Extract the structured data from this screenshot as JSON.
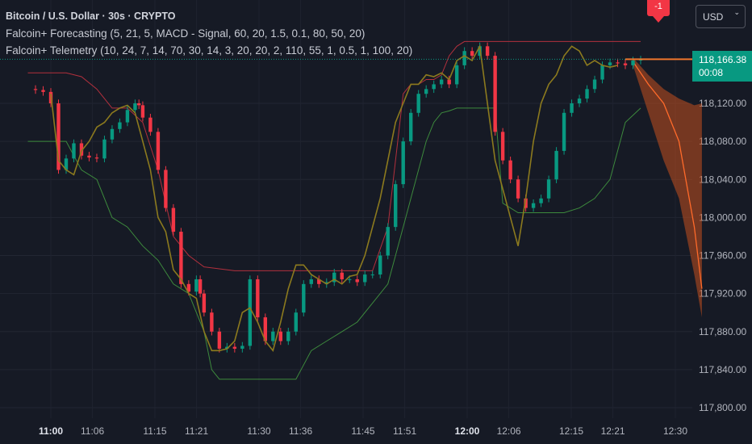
{
  "header": {
    "symbol_line": "Bitcoin / U.S. Dollar · 30s · CRYPTO",
    "indicator1": "Falcoin+ Forecasting (5, 21, 5, MACD - Signal, 60, 20, 1.5, 0.1, 80, 50, 20)",
    "indicator2": "Falcoin+ Telemetry (10, 24, 7, 14, 70, 30, 14, 3, 20, 20, 2, 110, 55, 1, 0.5, 1, 100, 20)"
  },
  "currency_button": {
    "label": "USD"
  },
  "alert_badge": {
    "label": "-1"
  },
  "last_price": {
    "value": "118,166.38",
    "countdown": "00:08"
  },
  "colors": {
    "background": "#161a25",
    "up_candle": "#089981",
    "down_candle": "#f23645",
    "ma_line": "#8c7a1e",
    "upper_band": "#b2303d",
    "lower_band": "#3d8a3d",
    "forecast": "#c4501f"
  },
  "chart_data": {
    "type": "line",
    "title": "Bitcoin / U.S. Dollar · 30s · CRYPTO",
    "x_ticks": [
      "11:00",
      "11:06",
      "11:15",
      "11:21",
      "11:30",
      "11:36",
      "11:45",
      "11:51",
      "12:00",
      "12:06",
      "12:15",
      "12:21",
      "12:30"
    ],
    "x_ticks_bold": [
      "11:00",
      "12:00"
    ],
    "y_ticks": [
      "118,120.00",
      "118,080.00",
      "118,040.00",
      "118,000.00",
      "117,960.00",
      "117,920.00",
      "117,880.00",
      "117,840.00",
      "117,800.00"
    ],
    "ylim": [
      117790,
      118190
    ],
    "x_range_minutes": [
      0,
      100
    ],
    "series": [
      {
        "kind": "close_price",
        "points": [
          [
            -6,
            118135
          ],
          [
            -4,
            118134
          ],
          [
            -2,
            118132
          ],
          [
            0,
            118120
          ],
          [
            2,
            118050
          ],
          [
            4,
            118062
          ],
          [
            6,
            118078
          ],
          [
            8,
            118065
          ],
          [
            10,
            118063
          ],
          [
            12,
            118062
          ],
          [
            14,
            118082
          ],
          [
            16,
            118093
          ],
          [
            18,
            118100
          ],
          [
            20,
            118113
          ],
          [
            22,
            118120
          ],
          [
            23,
            118118
          ],
          [
            24,
            118105
          ],
          [
            26,
            118090
          ],
          [
            28,
            118050
          ],
          [
            30,
            118010
          ],
          [
            32,
            117985
          ],
          [
            34,
            117930
          ],
          [
            36,
            117922
          ],
          [
            38,
            117935
          ],
          [
            39,
            117920
          ],
          [
            40,
            117900
          ],
          [
            42,
            117880
          ],
          [
            44,
            117862
          ],
          [
            46,
            117864
          ],
          [
            48,
            117862
          ],
          [
            50,
            117865
          ],
          [
            52,
            117935
          ],
          [
            54,
            117895
          ],
          [
            56,
            117870
          ],
          [
            58,
            117880
          ],
          [
            60,
            117870
          ],
          [
            62,
            117880
          ],
          [
            64,
            117900
          ],
          [
            66,
            117930
          ],
          [
            68,
            117935
          ],
          [
            70,
            117930
          ],
          [
            72,
            117932
          ],
          [
            74,
            117942
          ],
          [
            76,
            117935
          ],
          [
            78,
            117935
          ],
          [
            80,
            117932
          ],
          [
            82,
            117940
          ],
          [
            84,
            117940
          ],
          [
            86,
            117960
          ],
          [
            88,
            117990
          ],
          [
            90,
            118035
          ],
          [
            92,
            118080
          ],
          [
            94,
            118110
          ],
          [
            96,
            118130
          ],
          [
            98,
            118135
          ],
          [
            100,
            118140
          ],
          [
            102,
            118145
          ],
          [
            104,
            118140
          ],
          [
            106,
            118160
          ],
          [
            108,
            118175
          ],
          [
            110,
            118170
          ],
          [
            112,
            118180
          ],
          [
            114,
            118170
          ],
          [
            116,
            118090
          ],
          [
            118,
            118060
          ],
          [
            120,
            118040
          ],
          [
            122,
            118020
          ],
          [
            124,
            118010
          ],
          [
            126,
            118015
          ],
          [
            128,
            118020
          ],
          [
            130,
            118040
          ],
          [
            132,
            118070
          ],
          [
            134,
            118110
          ],
          [
            136,
            118120
          ],
          [
            138,
            118125
          ],
          [
            140,
            118135
          ],
          [
            142,
            118145
          ],
          [
            144,
            118160
          ],
          [
            146,
            118163
          ],
          [
            148,
            118162
          ],
          [
            150,
            118160
          ],
          [
            152,
            118165
          ],
          [
            154,
            118166
          ]
        ]
      },
      {
        "kind": "moving_average",
        "points": [
          [
            0,
            118130
          ],
          [
            2,
            118060
          ],
          [
            4,
            118050
          ],
          [
            6,
            118045
          ],
          [
            8,
            118070
          ],
          [
            10,
            118080
          ],
          [
            12,
            118095
          ],
          [
            14,
            118100
          ],
          [
            16,
            118110
          ],
          [
            18,
            118115
          ],
          [
            20,
            118118
          ],
          [
            22,
            118110
          ],
          [
            24,
            118080
          ],
          [
            26,
            118050
          ],
          [
            28,
            118000
          ],
          [
            30,
            117985
          ],
          [
            32,
            117945
          ],
          [
            34,
            117935
          ],
          [
            36,
            117920
          ],
          [
            38,
            117915
          ],
          [
            40,
            117880
          ],
          [
            42,
            117860
          ],
          [
            44,
            117860
          ],
          [
            46,
            117862
          ],
          [
            48,
            117870
          ],
          [
            50,
            117900
          ],
          [
            52,
            117905
          ],
          [
            54,
            117890
          ],
          [
            56,
            117870
          ],
          [
            58,
            117860
          ],
          [
            60,
            117890
          ],
          [
            62,
            117925
          ],
          [
            64,
            117950
          ],
          [
            66,
            117950
          ],
          [
            68,
            117940
          ],
          [
            70,
            117935
          ],
          [
            72,
            117930
          ],
          [
            74,
            117935
          ],
          [
            76,
            117930
          ],
          [
            78,
            117938
          ],
          [
            80,
            117940
          ],
          [
            82,
            117960
          ],
          [
            84,
            117990
          ],
          [
            86,
            118020
          ],
          [
            88,
            118060
          ],
          [
            90,
            118100
          ],
          [
            92,
            118120
          ],
          [
            94,
            118140
          ],
          [
            96,
            118140
          ],
          [
            98,
            118150
          ],
          [
            100,
            118148
          ],
          [
            102,
            118152
          ],
          [
            104,
            118145
          ],
          [
            106,
            118165
          ],
          [
            108,
            118170
          ],
          [
            110,
            118165
          ],
          [
            112,
            118180
          ],
          [
            114,
            118120
          ],
          [
            116,
            118060
          ],
          [
            118,
            118030
          ],
          [
            120,
            118000
          ],
          [
            122,
            117970
          ],
          [
            124,
            118020
          ],
          [
            126,
            118080
          ],
          [
            128,
            118120
          ],
          [
            130,
            118140
          ],
          [
            132,
            118150
          ],
          [
            134,
            118170
          ],
          [
            136,
            118180
          ],
          [
            138,
            118175
          ],
          [
            140,
            118160
          ],
          [
            142,
            118165
          ],
          [
            144,
            118160
          ],
          [
            146,
            118158
          ],
          [
            148,
            118160
          ]
        ]
      },
      {
        "kind": "upper_band",
        "points": [
          [
            -6,
            118152
          ],
          [
            4,
            118152
          ],
          [
            8,
            118148
          ],
          [
            12,
            118135
          ],
          [
            16,
            118115
          ],
          [
            20,
            118115
          ],
          [
            24,
            118100
          ],
          [
            28,
            118050
          ],
          [
            32,
            117980
          ],
          [
            36,
            117960
          ],
          [
            40,
            117948
          ],
          [
            44,
            117946
          ],
          [
            48,
            117944
          ],
          [
            52,
            117944
          ],
          [
            56,
            117944
          ],
          [
            60,
            117944
          ],
          [
            64,
            117944
          ],
          [
            68,
            117944
          ],
          [
            72,
            117944
          ],
          [
            76,
            117944
          ],
          [
            80,
            117944
          ],
          [
            84,
            117944
          ],
          [
            88,
            117990
          ],
          [
            90,
            118060
          ],
          [
            92,
            118130
          ],
          [
            94,
            118140
          ],
          [
            96,
            118140
          ],
          [
            98,
            118145
          ],
          [
            100,
            118145
          ],
          [
            102,
            118150
          ],
          [
            104,
            118170
          ],
          [
            106,
            118180
          ],
          [
            108,
            118185
          ],
          [
            110,
            118185
          ],
          [
            112,
            118185
          ],
          [
            114,
            118185
          ],
          [
            116,
            118185
          ],
          [
            118,
            118185
          ],
          [
            122,
            118185
          ],
          [
            126,
            118185
          ],
          [
            130,
            118185
          ],
          [
            134,
            118185
          ],
          [
            138,
            118185
          ],
          [
            142,
            118185
          ],
          [
            146,
            118185
          ],
          [
            150,
            118185
          ],
          [
            154,
            118185
          ]
        ]
      },
      {
        "kind": "lower_band",
        "points": [
          [
            -6,
            118080
          ],
          [
            4,
            118080
          ],
          [
            8,
            118050
          ],
          [
            12,
            118040
          ],
          [
            16,
            118000
          ],
          [
            20,
            117990
          ],
          [
            24,
            117970
          ],
          [
            28,
            117955
          ],
          [
            32,
            117930
          ],
          [
            36,
            117920
          ],
          [
            38,
            117900
          ],
          [
            40,
            117880
          ],
          [
            42,
            117840
          ],
          [
            44,
            117830
          ],
          [
            48,
            117830
          ],
          [
            52,
            117830
          ],
          [
            56,
            117830
          ],
          [
            60,
            117830
          ],
          [
            64,
            117830
          ],
          [
            68,
            117860
          ],
          [
            72,
            117870
          ],
          [
            76,
            117880
          ],
          [
            80,
            117890
          ],
          [
            84,
            117910
          ],
          [
            88,
            117930
          ],
          [
            90,
            117960
          ],
          [
            92,
            117990
          ],
          [
            94,
            118020
          ],
          [
            96,
            118050
          ],
          [
            98,
            118080
          ],
          [
            100,
            118100
          ],
          [
            102,
            118110
          ],
          [
            104,
            118112
          ],
          [
            106,
            118115
          ],
          [
            108,
            118115
          ],
          [
            110,
            118115
          ],
          [
            112,
            118115
          ],
          [
            116,
            118115
          ],
          [
            118,
            118015
          ],
          [
            122,
            118005
          ],
          [
            126,
            118005
          ],
          [
            130,
            118005
          ],
          [
            134,
            118005
          ],
          [
            138,
            118010
          ],
          [
            142,
            118020
          ],
          [
            146,
            118040
          ],
          [
            150,
            118100
          ],
          [
            154,
            118115
          ]
        ]
      },
      {
        "kind": "forecast_mid",
        "points": [
          [
            152,
            118164
          ],
          [
            156,
            118140
          ],
          [
            160,
            118120
          ],
          [
            164,
            118080
          ],
          [
            168,
            117990
          ],
          [
            170,
            117925
          ]
        ]
      },
      {
        "kind": "forecast_upper",
        "points": [
          [
            152,
            118168
          ],
          [
            156,
            118150
          ],
          [
            160,
            118135
          ],
          [
            164,
            118125
          ],
          [
            168,
            118118
          ],
          [
            170,
            118120
          ]
        ]
      },
      {
        "kind": "forecast_lower",
        "points": [
          [
            152,
            118160
          ],
          [
            156,
            118110
          ],
          [
            160,
            118060
          ],
          [
            164,
            118020
          ],
          [
            168,
            117940
          ],
          [
            170,
            117895
          ]
        ]
      }
    ],
    "last_value": 118166.38
  }
}
